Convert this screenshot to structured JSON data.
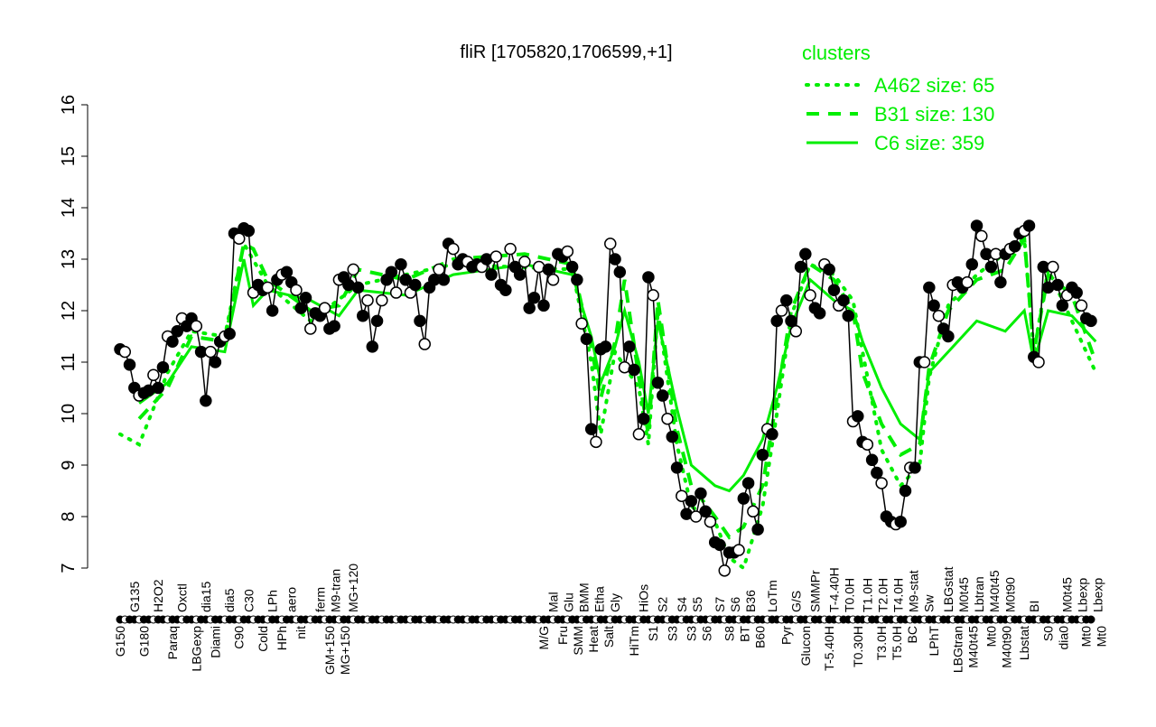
{
  "chart_data": {
    "type": "line",
    "title": "fliR [1705820,1706599,+1]",
    "xlabel": "",
    "ylabel": "",
    "ylim": [
      7,
      16
    ],
    "yticks": [
      7,
      8,
      9,
      10,
      11,
      12,
      13,
      14,
      15,
      16
    ],
    "grid": false,
    "legend": {
      "title": "clusters",
      "placement": "top-right",
      "entries": [
        {
          "label": "A462 size: 65",
          "style": "dotted"
        },
        {
          "label": "B31 size: 130",
          "style": "dashed"
        },
        {
          "label": "C6 size: 359",
          "style": "solid"
        }
      ]
    },
    "colors": {
      "cluster_lines": "#00ee00",
      "points": "#000000",
      "legend_text": "#00ee00"
    },
    "points": [
      11.25,
      11.2,
      10.95,
      10.5,
      10.35,
      10.4,
      10.45,
      10.75,
      10.5,
      10.9,
      11.5,
      11.4,
      11.6,
      11.85,
      11.7,
      11.85,
      11.7,
      11.2,
      10.25,
      11.2,
      11.0,
      11.4,
      11.5,
      11.55,
      13.5,
      13.4,
      13.6,
      13.55,
      12.35,
      12.5,
      12.4,
      12.45,
      12.0,
      12.6,
      12.7,
      12.75,
      12.55,
      12.4,
      12.05,
      12.25,
      11.65,
      11.95,
      11.9,
      12.05,
      11.65,
      11.7,
      12.6,
      12.65,
      12.5,
      12.8,
      12.45,
      11.9,
      12.2,
      11.3,
      11.8,
      12.2,
      12.6,
      12.75,
      12.35,
      12.9,
      12.6,
      12.35,
      12.5,
      11.8,
      11.35,
      12.45,
      12.6,
      12.8,
      12.6,
      13.3,
      13.2,
      12.9,
      13.0,
      12.95,
      12.85,
      12.9,
      12.85,
      13.0,
      12.7,
      13.05,
      12.5,
      12.4,
      13.2,
      12.85,
      12.7,
      12.95,
      12.05,
      12.25,
      12.85,
      12.1,
      12.8,
      12.6,
      13.1,
      13.05,
      13.15,
      12.85,
      12.6,
      11.75,
      11.45,
      9.7,
      9.45,
      11.25,
      11.3,
      13.3,
      13.0,
      12.75,
      10.9,
      11.3,
      10.85,
      9.6,
      9.9,
      12.65,
      12.3,
      10.6,
      10.35,
      9.9,
      9.55,
      8.95,
      8.4,
      8.05,
      8.3,
      8.0,
      8.45,
      8.1,
      7.9,
      7.5,
      7.45,
      6.95,
      7.3,
      7.3,
      7.35,
      8.35,
      8.65,
      8.1,
      7.75,
      9.2,
      9.7,
      9.6,
      11.8,
      12.0,
      12.2,
      11.8,
      11.6,
      12.85,
      13.1,
      12.3,
      12.05,
      11.95,
      12.9,
      12.8,
      12.4,
      12.1,
      12.2,
      11.9,
      9.85,
      9.95,
      9.45,
      9.4,
      9.1,
      8.85,
      8.65,
      8.0,
      7.9,
      7.85,
      7.9,
      8.5,
      8.95,
      8.95,
      11.0,
      11.0,
      12.45,
      12.1,
      11.9,
      11.65,
      11.5,
      12.5,
      12.55,
      12.45,
      12.55,
      12.9,
      13.65,
      13.45,
      13.1,
      12.85,
      13.1,
      12.55,
      13.1,
      13.2,
      13.25,
      13.5,
      13.55,
      13.65,
      11.1,
      11.0,
      12.85,
      12.45,
      12.85,
      12.5,
      12.1,
      12.3,
      12.45,
      12.35,
      12.1,
      11.85,
      11.8
    ],
    "series": [
      {
        "name": "C6 size: 359",
        "style": "solid",
        "knots": [
          [
            4,
            10.2
          ],
          [
            10,
            10.6
          ],
          [
            15,
            11.3
          ],
          [
            22,
            11.2
          ],
          [
            26,
            13.0
          ],
          [
            28,
            12.1
          ],
          [
            31,
            12.4
          ],
          [
            40,
            12.2
          ],
          [
            46,
            11.9
          ],
          [
            50,
            12.4
          ],
          [
            60,
            12.3
          ],
          [
            70,
            12.7
          ],
          [
            85,
            12.9
          ],
          [
            95,
            12.7
          ],
          [
            99,
            11.5
          ],
          [
            101,
            10.6
          ],
          [
            104,
            11.3
          ],
          [
            106,
            12.0
          ],
          [
            109,
            11.0
          ],
          [
            111,
            10.0
          ],
          [
            113,
            11.8
          ],
          [
            117,
            10.1
          ],
          [
            120,
            9.0
          ],
          [
            125,
            8.6
          ],
          [
            128,
            8.5
          ],
          [
            131,
            8.8
          ],
          [
            135,
            9.5
          ],
          [
            138,
            10.5
          ],
          [
            141,
            11.7
          ],
          [
            145,
            12.6
          ],
          [
            150,
            12.2
          ],
          [
            154,
            12.0
          ],
          [
            156,
            11.4
          ],
          [
            160,
            10.5
          ],
          [
            164,
            9.8
          ],
          [
            168,
            9.5
          ],
          [
            170,
            10.8
          ],
          [
            174,
            11.2
          ],
          [
            180,
            11.8
          ],
          [
            186,
            11.6
          ],
          [
            190,
            12.0
          ],
          [
            192,
            11.0
          ],
          [
            195,
            12.0
          ],
          [
            200,
            11.9
          ],
          [
            205,
            11.4
          ]
        ]
      },
      {
        "name": "B31 size: 130",
        "style": "dashed",
        "knots": [
          [
            4,
            9.9
          ],
          [
            10,
            10.5
          ],
          [
            15,
            11.5
          ],
          [
            22,
            11.4
          ],
          [
            26,
            13.3
          ],
          [
            28,
            13.2
          ],
          [
            31,
            12.6
          ],
          [
            40,
            12.0
          ],
          [
            46,
            12.1
          ],
          [
            50,
            12.8
          ],
          [
            60,
            12.6
          ],
          [
            70,
            13.0
          ],
          [
            85,
            13.1
          ],
          [
            95,
            12.9
          ],
          [
            99,
            11.3
          ],
          [
            101,
            10.3
          ],
          [
            104,
            11.4
          ],
          [
            106,
            12.6
          ],
          [
            109,
            10.7
          ],
          [
            111,
            9.6
          ],
          [
            113,
            12.2
          ],
          [
            117,
            9.7
          ],
          [
            120,
            8.6
          ],
          [
            125,
            8.0
          ],
          [
            128,
            7.6
          ],
          [
            131,
            7.8
          ],
          [
            135,
            8.6
          ],
          [
            138,
            10.3
          ],
          [
            141,
            12.0
          ],
          [
            145,
            12.9
          ],
          [
            150,
            12.6
          ],
          [
            154,
            12.0
          ],
          [
            156,
            10.8
          ],
          [
            160,
            9.8
          ],
          [
            164,
            9.2
          ],
          [
            168,
            9.4
          ],
          [
            170,
            10.9
          ],
          [
            174,
            12.0
          ],
          [
            180,
            12.6
          ],
          [
            186,
            12.8
          ],
          [
            190,
            13.4
          ],
          [
            192,
            11.2
          ],
          [
            195,
            12.7
          ],
          [
            200,
            12.3
          ],
          [
            205,
            11.0
          ]
        ]
      },
      {
        "name": "A462 size: 65",
        "style": "dotted",
        "knots": [
          [
            0,
            9.6
          ],
          [
            4,
            9.4
          ],
          [
            10,
            10.8
          ],
          [
            15,
            11.6
          ],
          [
            22,
            11.5
          ],
          [
            26,
            13.3
          ],
          [
            31,
            12.5
          ],
          [
            40,
            11.8
          ],
          [
            50,
            12.5
          ],
          [
            70,
            12.9
          ],
          [
            95,
            12.8
          ],
          [
            99,
            11.0
          ],
          [
            101,
            9.6
          ],
          [
            104,
            11.2
          ],
          [
            109,
            10.5
          ],
          [
            111,
            9.4
          ],
          [
            113,
            12.0
          ],
          [
            117,
            9.4
          ],
          [
            120,
            8.2
          ],
          [
            125,
            7.9
          ],
          [
            128,
            7.2
          ],
          [
            131,
            7.0
          ],
          [
            135,
            8.2
          ],
          [
            138,
            10.0
          ],
          [
            141,
            11.9
          ],
          [
            145,
            12.9
          ],
          [
            150,
            12.7
          ],
          [
            154,
            12.2
          ],
          [
            156,
            11.2
          ],
          [
            160,
            9.3
          ],
          [
            164,
            8.6
          ],
          [
            168,
            9.0
          ],
          [
            170,
            10.7
          ],
          [
            174,
            12.1
          ],
          [
            180,
            12.7
          ],
          [
            190,
            13.4
          ],
          [
            192,
            11.2
          ],
          [
            195,
            12.8
          ],
          [
            205,
            10.8
          ]
        ]
      }
    ],
    "xtick_labels_top": [
      [
        3,
        "G135"
      ],
      [
        8,
        "H2O2"
      ],
      [
        13,
        "Oxctl"
      ],
      [
        18,
        "dia15"
      ],
      [
        23,
        "dia5"
      ],
      [
        27,
        "C30"
      ],
      [
        32,
        "LPh"
      ],
      [
        36,
        "aero"
      ],
      [
        42,
        "ferm"
      ],
      [
        45,
        "M9-tran"
      ],
      [
        49,
        "MG+120"
      ],
      [
        91,
        "Mal"
      ],
      [
        94,
        "Glu"
      ],
      [
        96,
        "BMM"
      ],
      [
        100,
        "Etha"
      ],
      [
        104,
        "Gly"
      ],
      [
        110,
        "HiOs"
      ],
      [
        114,
        "S2"
      ],
      [
        118,
        "S4"
      ],
      [
        121,
        "S5"
      ],
      [
        126,
        "S7"
      ],
      [
        129,
        "S6"
      ],
      [
        132,
        "B36"
      ],
      [
        137,
        "LoTm"
      ],
      [
        142,
        "G/S"
      ],
      [
        146,
        "SMMPr"
      ],
      [
        150,
        "T-4.40H"
      ],
      [
        152,
        "T0.0H"
      ],
      [
        157,
        "T1.0H"
      ],
      [
        159,
        "T2.0H"
      ],
      [
        161,
        "T4.0H"
      ],
      [
        163,
        "M9-stat"
      ],
      [
        169,
        "Sw"
      ],
      [
        174,
        "LBGstat"
      ],
      [
        177,
        "M0t45"
      ],
      [
        180,
        "Lbtran"
      ],
      [
        182,
        "M40t45"
      ],
      [
        187,
        "M0t90"
      ],
      [
        192,
        "BI"
      ],
      [
        199,
        "M0t45"
      ],
      [
        201,
        "Lbexp"
      ],
      [
        202,
        "Lbexp"
      ]
    ],
    "xtick_labels_bottom": [
      [
        0,
        "G150"
      ],
      [
        5,
        "G180"
      ],
      [
        11,
        "Paraq"
      ],
      [
        16,
        "LBGexp"
      ],
      [
        20,
        "Diami"
      ],
      [
        25,
        "C90"
      ],
      [
        30,
        "Cold"
      ],
      [
        34,
        "HPh"
      ],
      [
        38,
        "nit"
      ],
      [
        44,
        "GM+150"
      ],
      [
        47,
        "MG+150"
      ],
      [
        89,
        "M/G"
      ],
      [
        93,
        "Fru"
      ],
      [
        95,
        "SMM"
      ],
      [
        98,
        "Heat"
      ],
      [
        102,
        "Salt"
      ],
      [
        108,
        "HiTm"
      ],
      [
        112,
        "S1"
      ],
      [
        116,
        "S3"
      ],
      [
        120,
        "S3"
      ],
      [
        123,
        "S6"
      ],
      [
        128,
        "S8"
      ],
      [
        130,
        "BT"
      ],
      [
        134,
        "B60"
      ],
      [
        140,
        "Pyr"
      ],
      [
        144,
        "Glucon"
      ],
      [
        149,
        "T-5.40H"
      ],
      [
        155,
        "T0.30H"
      ],
      [
        160,
        "T3.0H"
      ],
      [
        162,
        "T5.0H"
      ],
      [
        166,
        "BC"
      ],
      [
        171,
        "LPhT"
      ],
      [
        176,
        "LBGtran"
      ],
      [
        178,
        "M40t45"
      ],
      [
        183,
        "Mt0"
      ],
      [
        185,
        "M40t90"
      ],
      [
        190,
        "Lbstat"
      ],
      [
        195,
        "S0"
      ],
      [
        198,
        "dia0"
      ],
      [
        203,
        "Mt0"
      ],
      [
        204,
        "Mt0"
      ]
    ]
  }
}
